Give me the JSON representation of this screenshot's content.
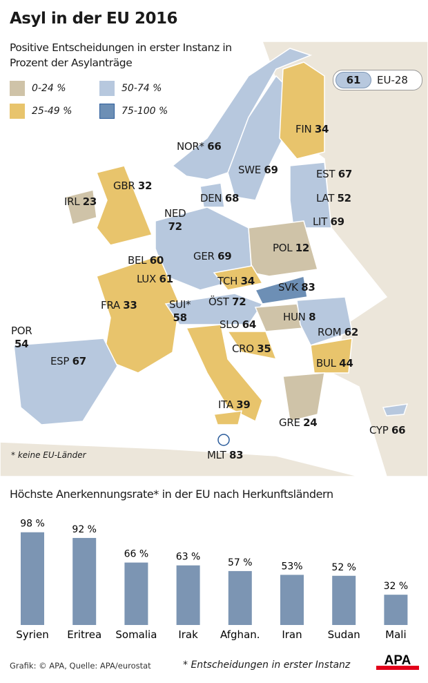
{
  "header": {
    "title": "Asyl in der EU 2016",
    "subtitle": "Positive Entscheidungen in erster Instanz in Prozent der Asylanträge"
  },
  "legend": [
    {
      "label": "0-24 %",
      "color": "#cfc3a8"
    },
    {
      "label": "50-74 %",
      "color": "#b7c8de"
    },
    {
      "label": "25-49 %",
      "color": "#e8c46c"
    },
    {
      "label": "75-100 %",
      "color": "#6d8fb5"
    }
  ],
  "eu_average": {
    "value": "61",
    "label": "EU-28"
  },
  "countries": [
    {
      "code": "FIN",
      "value": "34"
    },
    {
      "code": "NOR*",
      "value": "66"
    },
    {
      "code": "SWE",
      "value": "69"
    },
    {
      "code": "EST",
      "value": "67"
    },
    {
      "code": "DEN",
      "value": "68"
    },
    {
      "code": "LAT",
      "value": "52"
    },
    {
      "code": "GBR",
      "value": "32"
    },
    {
      "code": "IRL",
      "value": "23"
    },
    {
      "code": "NED",
      "value": "72"
    },
    {
      "code": "LIT",
      "value": "69"
    },
    {
      "code": "POL",
      "value": "12"
    },
    {
      "code": "GER",
      "value": "69"
    },
    {
      "code": "BEL",
      "value": "60"
    },
    {
      "code": "LUX",
      "value": "61"
    },
    {
      "code": "TCH",
      "value": "34"
    },
    {
      "code": "SVK",
      "value": "83"
    },
    {
      "code": "FRA",
      "value": "33"
    },
    {
      "code": "SUI*",
      "value": "58"
    },
    {
      "code": "ÖST",
      "value": "72"
    },
    {
      "code": "HUN",
      "value": "8"
    },
    {
      "code": "SLO",
      "value": "64"
    },
    {
      "code": "ROM",
      "value": "62"
    },
    {
      "code": "POR",
      "value": "54"
    },
    {
      "code": "ESP",
      "value": "67"
    },
    {
      "code": "CRO",
      "value": "35"
    },
    {
      "code": "BUL",
      "value": "44"
    },
    {
      "code": "ITA",
      "value": "39"
    },
    {
      "code": "GRE",
      "value": "24"
    },
    {
      "code": "CYP",
      "value": "66"
    },
    {
      "code": "MLT",
      "value": "83"
    }
  ],
  "map_note": "* keine EU-Länder",
  "chart_data": {
    "type": "bar",
    "title": "Höchste Anerkennungsrate* in der EU nach Herkunftsländern",
    "categories": [
      "Syrien",
      "Eritrea",
      "Somalia",
      "Irak",
      "Afghan.",
      "Iran",
      "Sudan",
      "Mali"
    ],
    "values": [
      98,
      92,
      66,
      63,
      57,
      53,
      52,
      32
    ],
    "value_labels": [
      "98 %",
      "92 %",
      "66 %",
      "63 %",
      "57 %",
      "53%",
      "52 %",
      "32 %"
    ],
    "ylim": [
      0,
      100
    ],
    "color": "#7c95b3"
  },
  "footer": {
    "credit": "Grafik: © APA, Quelle: APA/eurostat",
    "footnote": "* Entscheidungen in erster Instanz",
    "logo": "APA"
  }
}
